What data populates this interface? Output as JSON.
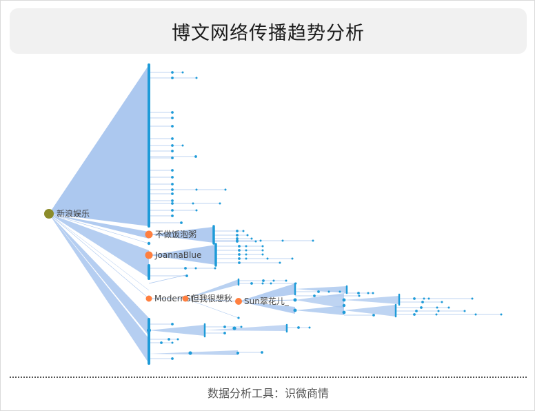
{
  "title": "博文网络传播趋势分析",
  "footer": "数据分析工具：识微商情",
  "colors": {
    "root": "#8c8c2a",
    "key": "#ff7f3f",
    "leaf": "#1e9bd8",
    "edge": "#a8c5ee"
  },
  "nodes": [
    {
      "label": "新浪娱乐",
      "role": "root"
    },
    {
      "label": "不做饭泡粥",
      "role": "key"
    },
    {
      "label": "JoannaBlue",
      "role": "key"
    },
    {
      "label": "ModernSt",
      "role": "key"
    },
    {
      "label": "但我很想秋",
      "role": "key"
    },
    {
      "label": "Sun翠花儿_",
      "role": "key"
    }
  ]
}
